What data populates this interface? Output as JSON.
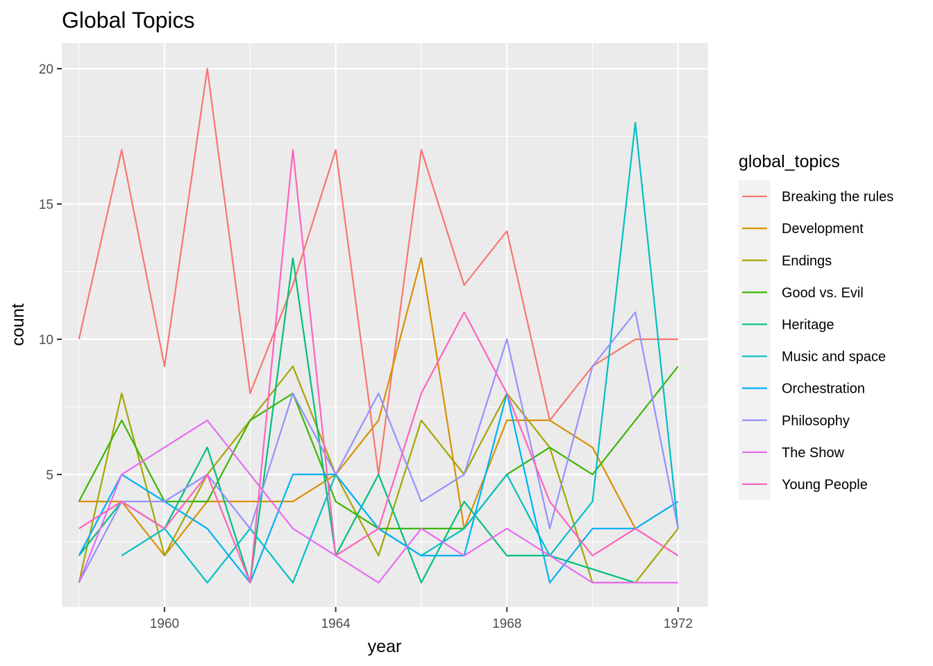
{
  "chart_data": {
    "type": "line",
    "title": "Global Topics",
    "xlabel": "year",
    "ylabel": "count",
    "x_ticks": [
      1960,
      1964,
      1968,
      1972
    ],
    "y_ticks": [
      5,
      10,
      15,
      20
    ],
    "xlim": [
      1957.6,
      1972.7
    ],
    "ylim": [
      0.1,
      20.95
    ],
    "grid": true,
    "legend": {
      "title": "global_topics",
      "position": "right"
    },
    "series": [
      {
        "name": "Breaking the rules",
        "color": "#F8766D",
        "x": [
          1958,
          1959,
          1960,
          1961,
          1962,
          1963,
          1964,
          1965,
          1966,
          1967,
          1968,
          1969,
          1970,
          1971,
          1972
        ],
        "y": [
          10,
          17,
          9,
          20,
          8,
          12,
          17,
          5,
          17,
          12,
          14,
          7,
          9,
          10,
          10
        ]
      },
      {
        "name": "Development",
        "color": "#D89000",
        "x": [
          1958,
          1959,
          1960,
          1961,
          1962,
          1963,
          1964,
          1965,
          1966,
          1967,
          1968,
          1969,
          1970,
          1971
        ],
        "y": [
          4,
          4,
          2,
          4,
          4,
          4,
          5,
          7,
          13,
          3,
          7,
          7,
          6,
          3
        ]
      },
      {
        "name": "Endings",
        "color": "#A3A500",
        "x": [
          1958,
          1959,
          1960,
          1961,
          1962,
          1963,
          1964,
          1965,
          1966,
          1967,
          1968,
          1969,
          1970,
          1971,
          1972
        ],
        "y": [
          1,
          8,
          2,
          5,
          7,
          9,
          5,
          2,
          7,
          5,
          8,
          6,
          1,
          1,
          3
        ]
      },
      {
        "name": "Good vs. Evil",
        "color": "#39B600",
        "x": [
          1958,
          1959,
          1960,
          1961,
          1962,
          1963,
          1964,
          1965,
          1966,
          1967,
          1968,
          1969,
          1970,
          1972
        ],
        "y": [
          4,
          7,
          4,
          4,
          7,
          8,
          4,
          3,
          3,
          3,
          5,
          6,
          5,
          9
        ]
      },
      {
        "name": "Heritage",
        "color": "#00BF7D",
        "x": [
          1958,
          1959,
          1960,
          1961,
          1962,
          1963,
          1964,
          1965,
          1966,
          1967,
          1968,
          1969,
          1971
        ],
        "y": [
          2,
          4,
          3,
          6,
          1,
          13,
          2,
          5,
          1,
          4,
          2,
          2,
          1
        ]
      },
      {
        "name": "Music and space",
        "color": "#00BFC4",
        "x": [
          1959,
          1960,
          1961,
          1962,
          1963,
          1964,
          1965,
          1966,
          1967,
          1968,
          1969,
          1970,
          1971,
          1972
        ],
        "y": [
          2,
          3,
          1,
          3,
          1,
          5,
          3,
          2,
          3,
          5,
          2,
          4,
          18,
          3
        ]
      },
      {
        "name": "Orchestration",
        "color": "#00B0F6",
        "x": [
          1958,
          1959,
          1960,
          1961,
          1962,
          1963,
          1964,
          1965,
          1966,
          1967,
          1968,
          1969,
          1970,
          1971,
          1972
        ],
        "y": [
          2,
          5,
          4,
          3,
          1,
          5,
          5,
          3,
          2,
          2,
          8,
          1,
          3,
          3,
          4
        ]
      },
      {
        "name": "Philosophy",
        "color": "#9590FF",
        "x": [
          1958,
          1959,
          1960,
          1961,
          1962,
          1963,
          1964,
          1965,
          1966,
          1967,
          1968,
          1969,
          1970,
          1971,
          1972
        ],
        "y": [
          1,
          4,
          4,
          5,
          3,
          8,
          5,
          8,
          4,
          5,
          10,
          3,
          9,
          11,
          3
        ]
      },
      {
        "name": "The Show",
        "color": "#E76BF3",
        "x": [
          1958,
          1959,
          1961,
          1962,
          1963,
          1964,
          1965,
          1966,
          1967,
          1968,
          1969,
          1970,
          1971,
          1972
        ],
        "y": [
          1,
          5,
          7,
          5,
          3,
          2,
          1,
          3,
          2,
          3,
          2,
          1,
          1,
          1
        ]
      },
      {
        "name": "Young People",
        "color": "#FF62BC",
        "x": [
          1958,
          1959,
          1960,
          1961,
          1962,
          1963,
          1964,
          1965,
          1966,
          1967,
          1968,
          1969,
          1970,
          1971,
          1972
        ],
        "y": [
          3,
          4,
          3,
          5,
          1,
          17,
          2,
          3,
          8,
          11,
          8,
          4,
          2,
          3,
          2
        ]
      }
    ]
  }
}
